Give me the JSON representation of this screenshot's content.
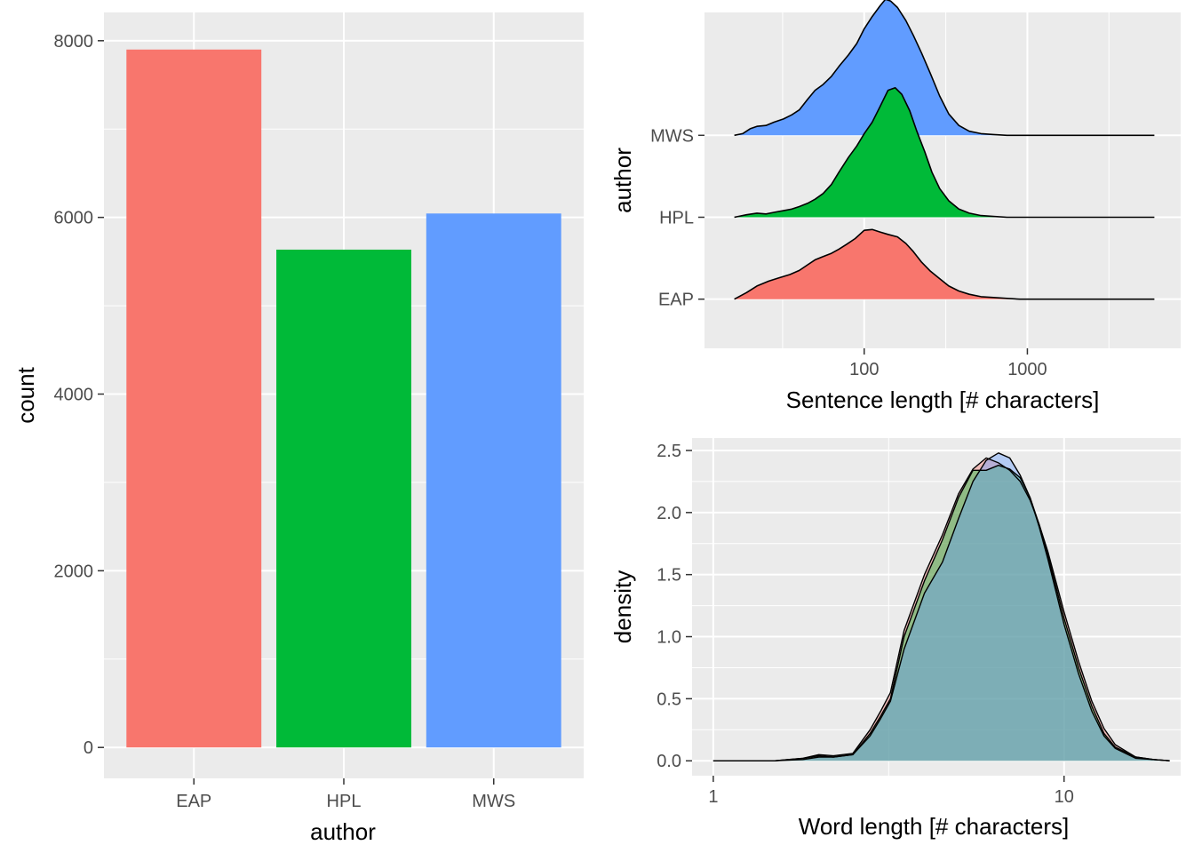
{
  "chart_data": [
    {
      "type": "bar",
      "categories": [
        "EAP",
        "HPL",
        "MWS"
      ],
      "values": [
        7900,
        5635,
        6044
      ],
      "colors": [
        "#F8766D",
        "#00BA38",
        "#619CFF"
      ],
      "xlabel": "author",
      "ylabel": "count",
      "ylim": [
        -350,
        8320
      ],
      "yticks": [
        0,
        2000,
        4000,
        6000,
        8000
      ],
      "ytick_labels": [
        "0",
        "2000",
        "4000",
        "6000",
        "8000"
      ],
      "grid": true
    },
    {
      "type": "area",
      "subtype": "ridgeline",
      "xscale": "log",
      "xlim": [
        10.5,
        8700
      ],
      "xticks": [
        100,
        1000
      ],
      "xtick_labels": [
        "100",
        "1000"
      ],
      "xlabel": "Sentence length [# characters]",
      "ylabel": "author",
      "grid": true,
      "series": [
        {
          "name": "EAP",
          "color": "#F8766D",
          "x": [
            16,
            19,
            22,
            26,
            30,
            35,
            40,
            45,
            50,
            56,
            63,
            70,
            78,
            88,
            100,
            112,
            125,
            140,
            160,
            180,
            200,
            225,
            255,
            290,
            330,
            380,
            440,
            520,
            620,
            750,
            900,
            1100,
            1500,
            2500,
            4000,
            6000
          ],
          "y": [
            0.0,
            0.08,
            0.16,
            0.22,
            0.26,
            0.3,
            0.35,
            0.42,
            0.48,
            0.52,
            0.56,
            0.61,
            0.67,
            0.74,
            0.84,
            0.85,
            0.82,
            0.79,
            0.76,
            0.68,
            0.58,
            0.45,
            0.34,
            0.25,
            0.16,
            0.1,
            0.06,
            0.03,
            0.02,
            0.01,
            0.0,
            0.0,
            0.0,
            0.0,
            0.0,
            0.0
          ]
        },
        {
          "name": "HPL",
          "color": "#00BA38",
          "x": [
            16,
            19,
            22,
            25,
            28,
            32,
            36,
            40,
            45,
            50,
            56,
            63,
            70,
            80,
            90,
            100,
            112,
            125,
            140,
            155,
            170,
            190,
            210,
            235,
            260,
            290,
            330,
            380,
            440,
            520,
            620,
            750,
            1000,
            1500,
            3000,
            6000
          ],
          "y": [
            0.0,
            0.03,
            0.05,
            0.04,
            0.06,
            0.08,
            0.1,
            0.13,
            0.17,
            0.22,
            0.29,
            0.4,
            0.55,
            0.73,
            0.87,
            1.02,
            1.16,
            1.35,
            1.55,
            1.58,
            1.5,
            1.3,
            1.05,
            0.8,
            0.55,
            0.35,
            0.2,
            0.1,
            0.05,
            0.02,
            0.01,
            0.0,
            0.0,
            0.0,
            0.0,
            0.0
          ]
        },
        {
          "name": "MWS",
          "color": "#619CFF",
          "x": [
            16,
            18,
            20,
            22,
            25,
            28,
            32,
            36,
            40,
            45,
            50,
            56,
            63,
            70,
            80,
            90,
            100,
            112,
            125,
            135,
            145,
            160,
            180,
            200,
            225,
            255,
            290,
            330,
            380,
            440,
            520,
            620,
            750,
            1000,
            1500,
            3000,
            6000
          ],
          "y": [
            0.0,
            0.02,
            0.08,
            0.11,
            0.12,
            0.16,
            0.2,
            0.25,
            0.31,
            0.44,
            0.55,
            0.62,
            0.72,
            0.84,
            0.98,
            1.12,
            1.3,
            1.45,
            1.58,
            1.66,
            1.64,
            1.56,
            1.4,
            1.22,
            1.0,
            0.75,
            0.48,
            0.26,
            0.12,
            0.05,
            0.02,
            0.01,
            0.0,
            0.0,
            0.0,
            0.0,
            0.0
          ]
        }
      ]
    },
    {
      "type": "area",
      "subtype": "density",
      "xscale": "log",
      "xlim": [
        0.87,
        21.5
      ],
      "ylim": [
        -0.12,
        2.6
      ],
      "xticks": [
        1,
        10
      ],
      "xtick_labels": [
        "1",
        "10"
      ],
      "yticks": [
        0.0,
        0.5,
        1.0,
        1.5,
        2.0,
        2.5
      ],
      "ytick_labels": [
        "0.0",
        "0.5",
        "1.0",
        "1.5",
        "2.0",
        "2.5"
      ],
      "xlabel": "Word length [# characters]",
      "ylabel": "density",
      "grid": true,
      "opacity": 0.4,
      "series": [
        {
          "name": "EAP",
          "color": "#F8766D",
          "x": [
            1.0,
            1.5,
            1.8,
            2.0,
            2.2,
            2.5,
            2.8,
            3.0,
            3.2,
            3.5,
            4.0,
            4.5,
            5.0,
            5.5,
            6.0,
            6.5,
            7.0,
            7.5,
            8.0,
            8.5,
            9.0,
            10.0,
            11.0,
            12.0,
            13.0,
            14.0,
            16.0,
            18.0,
            20.0
          ],
          "y": [
            0.0,
            0.0,
            0.02,
            0.05,
            0.04,
            0.06,
            0.25,
            0.4,
            0.55,
            1.05,
            1.5,
            1.82,
            2.15,
            2.35,
            2.44,
            2.4,
            2.34,
            2.25,
            2.1,
            1.9,
            1.68,
            1.2,
            0.8,
            0.48,
            0.26,
            0.13,
            0.03,
            0.01,
            0.0
          ]
        },
        {
          "name": "HPL",
          "color": "#00BA38",
          "x": [
            1.0,
            1.5,
            1.8,
            2.0,
            2.2,
            2.5,
            2.8,
            3.0,
            3.2,
            3.5,
            4.0,
            4.5,
            5.0,
            5.5,
            6.0,
            6.5,
            7.0,
            7.5,
            8.0,
            8.5,
            9.0,
            10.0,
            11.0,
            12.0,
            13.0,
            14.0,
            16.0,
            18.0,
            20.0
          ],
          "y": [
            0.0,
            0.0,
            0.02,
            0.04,
            0.03,
            0.05,
            0.22,
            0.36,
            0.5,
            1.0,
            1.45,
            1.78,
            2.12,
            2.34,
            2.34,
            2.38,
            2.35,
            2.28,
            2.12,
            1.9,
            1.65,
            1.15,
            0.75,
            0.44,
            0.22,
            0.11,
            0.03,
            0.01,
            0.0
          ]
        },
        {
          "name": "MWS",
          "color": "#619CFF",
          "x": [
            1.0,
            1.5,
            1.8,
            2.0,
            2.2,
            2.5,
            2.8,
            3.0,
            3.2,
            3.5,
            4.0,
            4.5,
            5.0,
            5.5,
            6.0,
            6.5,
            7.0,
            7.5,
            8.0,
            8.5,
            9.0,
            10.0,
            11.0,
            12.0,
            13.0,
            14.0,
            16.0,
            18.0,
            20.0
          ],
          "y": [
            0.0,
            0.0,
            0.01,
            0.03,
            0.03,
            0.05,
            0.2,
            0.34,
            0.48,
            0.9,
            1.35,
            1.6,
            1.95,
            2.25,
            2.42,
            2.48,
            2.44,
            2.3,
            2.12,
            1.88,
            1.62,
            1.1,
            0.7,
            0.4,
            0.2,
            0.1,
            0.02,
            0.01,
            0.0
          ]
        }
      ]
    }
  ]
}
